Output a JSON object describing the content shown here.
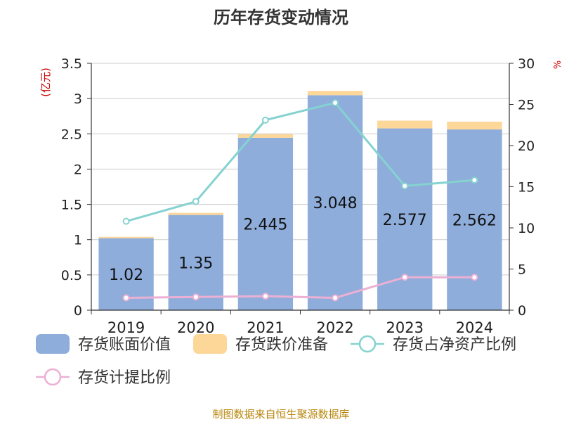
{
  "chart_data": {
    "type": "bar",
    "title": "历年存货变动情况",
    "ylabel_left": "(亿元)",
    "ylabel_right": "%",
    "categories": [
      "2019",
      "2020",
      "2021",
      "2022",
      "2023",
      "2024"
    ],
    "left_axis": {
      "min": 0,
      "max": 3.5,
      "ticks": [
        "0",
        "0.5",
        "1",
        "1.5",
        "2",
        "2.5",
        "3",
        "3.5"
      ]
    },
    "right_axis": {
      "min": 0,
      "max": 30,
      "ticks": [
        "0",
        "5",
        "10",
        "15",
        "20",
        "25",
        "30"
      ]
    },
    "series": [
      {
        "name": "存货账面价值",
        "kind": "bar",
        "axis": "left",
        "color": "#8eaddb",
        "values": [
          1.02,
          1.35,
          2.445,
          3.048,
          2.577,
          2.562
        ],
        "labels": [
          "1.02",
          "1.35",
          "2.445",
          "3.048",
          "2.577",
          "2.562"
        ]
      },
      {
        "name": "存货跌价准备",
        "kind": "bar-stacked",
        "axis": "left",
        "color": "#fcd797",
        "values": [
          0.02,
          0.03,
          0.05,
          0.06,
          0.11,
          0.11
        ]
      },
      {
        "name": "存货占净资产比例",
        "kind": "line",
        "axis": "right",
        "color": "#85d2d1",
        "values": [
          10.8,
          13.2,
          23.1,
          25.2,
          15.1,
          15.8
        ]
      },
      {
        "name": "存货计提比例",
        "kind": "line",
        "axis": "right",
        "color": "#ebb0d4",
        "values": [
          1.5,
          1.6,
          1.7,
          1.5,
          4.0,
          4.0
        ]
      }
    ],
    "grid": true,
    "legend_position": "bottom"
  },
  "footer": {
    "source": "制图数据来自恒生聚源数据库"
  }
}
